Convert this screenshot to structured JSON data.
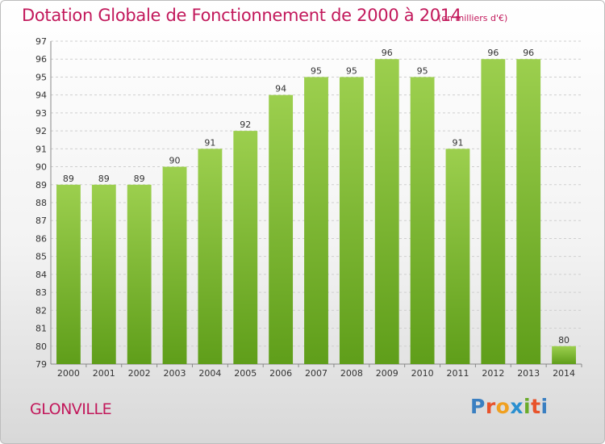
{
  "page": {
    "title": "Dotation Globale de Fonctionnement de 2000 à 2014",
    "subtitle": "(en milliers d'€)",
    "commune": "GLONVILLE",
    "logo": {
      "letters": [
        "P",
        "r",
        "o",
        "x",
        "i",
        "t",
        "i"
      ],
      "colors": [
        "#3a7fc1",
        "#e8532b",
        "#f0a020",
        "#2a8fd0",
        "#6aab2a",
        "#e8532b",
        "#3a7fc1"
      ]
    }
  },
  "chart_data": {
    "type": "bar",
    "title": "Dotation Globale de Fonctionnement de 2000 à 2014",
    "subtitle": "(en milliers d'€)",
    "categories": [
      "2000",
      "2001",
      "2002",
      "2003",
      "2004",
      "2005",
      "2006",
      "2007",
      "2008",
      "2009",
      "2010",
      "2011",
      "2012",
      "2013",
      "2014"
    ],
    "values": [
      89,
      89,
      89,
      90,
      91,
      92,
      94,
      95,
      95,
      96,
      95,
      91,
      96,
      96,
      80
    ],
    "ylim": [
      79,
      97
    ],
    "yticks": [
      79,
      80,
      81,
      82,
      83,
      84,
      85,
      86,
      87,
      88,
      89,
      90,
      91,
      92,
      93,
      94,
      95,
      96,
      97
    ],
    "grid": true,
    "bar_color_top": "#9ccf4e",
    "bar_color_bottom": "#5f9e1a",
    "xlabel": "",
    "ylabel": ""
  }
}
